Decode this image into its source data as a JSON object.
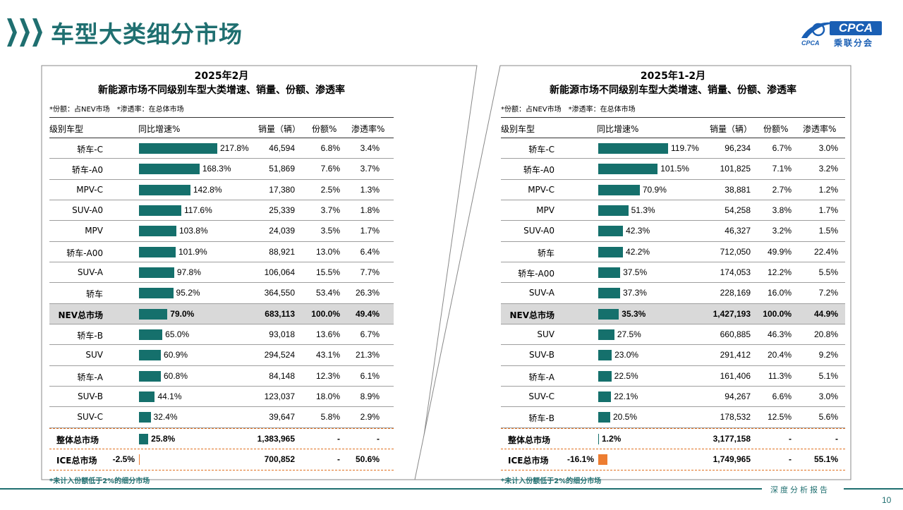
{
  "page": {
    "title": "车型大类细分市场",
    "page_number": "10",
    "report_label": "深度分析报告"
  },
  "logo": {
    "brand": "CPCA",
    "chinese": "乘联分会",
    "sub": "CPCA"
  },
  "colors": {
    "teal": "#15706c",
    "orange": "#ed7d31",
    "title": "#1f6f70"
  },
  "left": {
    "title_line1": "2025年2月",
    "title_line2": "新能源市场不同级别车型大类增速、销量、份额、渗透率",
    "note": "*份额：占NEV市场　*渗透率：在总体市场",
    "headers": {
      "category": "级别车型",
      "growth": "同比增速%",
      "sales": "销量（辆）",
      "share": "份额%",
      "penetration": "渗透率%"
    },
    "rows": [
      {
        "category": "轿车-C",
        "growth": 217.8,
        "growth_label": "217.8%",
        "sales": "46,594",
        "share": "6.8%",
        "penetration": "3.4%",
        "style": "normal"
      },
      {
        "category": "轿车-A0",
        "growth": 168.3,
        "growth_label": "168.3%",
        "sales": "51,869",
        "share": "7.6%",
        "penetration": "3.7%",
        "style": "normal"
      },
      {
        "category": "MPV-C",
        "growth": 142.8,
        "growth_label": "142.8%",
        "sales": "17,380",
        "share": "2.5%",
        "penetration": "1.3%",
        "style": "normal"
      },
      {
        "category": "SUV-A0",
        "growth": 117.6,
        "growth_label": "117.6%",
        "sales": "25,339",
        "share": "3.7%",
        "penetration": "1.8%",
        "style": "normal"
      },
      {
        "category": "MPV",
        "growth": 103.8,
        "growth_label": "103.8%",
        "sales": "24,039",
        "share": "3.5%",
        "penetration": "1.7%",
        "style": "normal"
      },
      {
        "category": "轿车-A00",
        "growth": 101.9,
        "growth_label": "101.9%",
        "sales": "88,921",
        "share": "13.0%",
        "penetration": "6.4%",
        "style": "normal"
      },
      {
        "category": "SUV-A",
        "growth": 97.8,
        "growth_label": "97.8%",
        "sales": "106,064",
        "share": "15.5%",
        "penetration": "7.7%",
        "style": "normal"
      },
      {
        "category": "轿车",
        "growth": 95.2,
        "growth_label": "95.2%",
        "sales": "364,550",
        "share": "53.4%",
        "penetration": "26.3%",
        "style": "normal"
      },
      {
        "category": "NEV总市场",
        "growth": 79.0,
        "growth_label": "79.0%",
        "sales": "683,113",
        "share": "100.0%",
        "penetration": "49.4%",
        "style": "nev"
      },
      {
        "category": "轿车-B",
        "growth": 65.0,
        "growth_label": "65.0%",
        "sales": "93,018",
        "share": "13.6%",
        "penetration": "6.7%",
        "style": "normal"
      },
      {
        "category": "SUV",
        "growth": 60.9,
        "growth_label": "60.9%",
        "sales": "294,524",
        "share": "43.1%",
        "penetration": "21.3%",
        "style": "normal"
      },
      {
        "category": "轿车-A",
        "growth": 60.8,
        "growth_label": "60.8%",
        "sales": "84,148",
        "share": "12.3%",
        "penetration": "6.1%",
        "style": "normal"
      },
      {
        "category": "SUV-B",
        "growth": 44.1,
        "growth_label": "44.1%",
        "sales": "123,037",
        "share": "18.0%",
        "penetration": "8.9%",
        "style": "normal"
      },
      {
        "category": "SUV-C",
        "growth": 32.4,
        "growth_label": "32.4%",
        "sales": "39,647",
        "share": "5.8%",
        "penetration": "2.9%",
        "style": "last"
      },
      {
        "category": "整体总市场",
        "growth": 25.8,
        "growth_label": "25.8%",
        "sales": "1,383,965",
        "share": "-",
        "penetration": "-",
        "style": "total"
      },
      {
        "category": "ICE总市场",
        "growth": -2.5,
        "growth_label": "-2.5%",
        "sales": "700,852",
        "share": "-",
        "penetration": "50.6%",
        "style": "total"
      }
    ],
    "footnote": "*未计入份额低于2%的细分市场"
  },
  "right": {
    "title_line1": "2025年1-2月",
    "title_line2": "新能源市场不同级别车型大类增速、销量、份额、渗透率",
    "note": "*份额：占NEV市场　*渗透率：在总体市场",
    "headers": {
      "category": "级别车型",
      "growth": "同比增速%",
      "sales": "销量（辆）",
      "share": "份额%",
      "penetration": "渗透率%"
    },
    "rows": [
      {
        "category": "轿车-C",
        "growth": 119.7,
        "growth_label": "119.7%",
        "sales": "96,234",
        "share": "6.7%",
        "penetration": "3.0%",
        "style": "normal"
      },
      {
        "category": "轿车-A0",
        "growth": 101.5,
        "growth_label": "101.5%",
        "sales": "101,825",
        "share": "7.1%",
        "penetration": "3.2%",
        "style": "normal"
      },
      {
        "category": "MPV-C",
        "growth": 70.9,
        "growth_label": "70.9%",
        "sales": "38,881",
        "share": "2.7%",
        "penetration": "1.2%",
        "style": "normal"
      },
      {
        "category": "MPV",
        "growth": 51.3,
        "growth_label": "51.3%",
        "sales": "54,258",
        "share": "3.8%",
        "penetration": "1.7%",
        "style": "normal"
      },
      {
        "category": "SUV-A0",
        "growth": 42.3,
        "growth_label": "42.3%",
        "sales": "46,327",
        "share": "3.2%",
        "penetration": "1.5%",
        "style": "normal"
      },
      {
        "category": "轿车",
        "growth": 42.2,
        "growth_label": "42.2%",
        "sales": "712,050",
        "share": "49.9%",
        "penetration": "22.4%",
        "style": "normal"
      },
      {
        "category": "轿车-A00",
        "growth": 37.5,
        "growth_label": "37.5%",
        "sales": "174,053",
        "share": "12.2%",
        "penetration": "5.5%",
        "style": "normal"
      },
      {
        "category": "SUV-A",
        "growth": 37.3,
        "growth_label": "37.3%",
        "sales": "228,169",
        "share": "16.0%",
        "penetration": "7.2%",
        "style": "normal"
      },
      {
        "category": "NEV总市场",
        "growth": 35.3,
        "growth_label": "35.3%",
        "sales": "1,427,193",
        "share": "100.0%",
        "penetration": "44.9%",
        "style": "nev"
      },
      {
        "category": "SUV",
        "growth": 27.5,
        "growth_label": "27.5%",
        "sales": "660,885",
        "share": "46.3%",
        "penetration": "20.8%",
        "style": "normal"
      },
      {
        "category": "SUV-B",
        "growth": 23.0,
        "growth_label": "23.0%",
        "sales": "291,412",
        "share": "20.4%",
        "penetration": "9.2%",
        "style": "normal"
      },
      {
        "category": "轿车-A",
        "growth": 22.5,
        "growth_label": "22.5%",
        "sales": "161,406",
        "share": "11.3%",
        "penetration": "5.1%",
        "style": "normal"
      },
      {
        "category": "SUV-C",
        "growth": 22.1,
        "growth_label": "22.1%",
        "sales": "94,267",
        "share": "6.6%",
        "penetration": "3.0%",
        "style": "normal"
      },
      {
        "category": "轿车-B",
        "growth": 20.5,
        "growth_label": "20.5%",
        "sales": "178,532",
        "share": "12.5%",
        "penetration": "5.6%",
        "style": "last"
      },
      {
        "category": "整体总市场",
        "growth": 1.2,
        "growth_label": "1.2%",
        "sales": "3,177,158",
        "share": "-",
        "penetration": "-",
        "style": "total"
      },
      {
        "category": "ICE总市场",
        "growth": -16.1,
        "growth_label": "-16.1%",
        "sales": "1,749,965",
        "share": "-",
        "penetration": "55.1%",
        "style": "total"
      }
    ],
    "footnote": "*未计入份额低于2%的细分市场"
  }
}
